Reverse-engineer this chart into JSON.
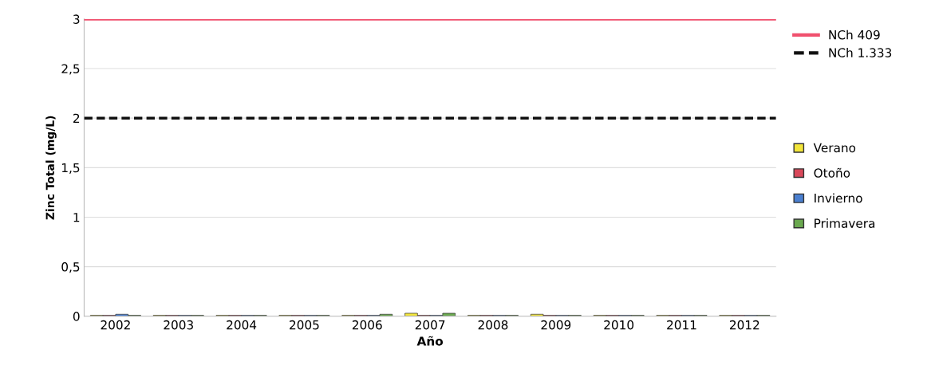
{
  "chart_data": {
    "type": "bar",
    "xlabel": "Año",
    "ylabel": "Zinc Total (mg/L)",
    "categories": [
      "2002",
      "2003",
      "2004",
      "2005",
      "2006",
      "2007",
      "2008",
      "2009",
      "2010",
      "2011",
      "2012"
    ],
    "series": [
      {
        "name": "Verano",
        "color": "#f2e53a",
        "values": [
          0.01,
          0.01,
          0.01,
          0.01,
          0.01,
          0.03,
          0.01,
          0.02,
          0.01,
          0.01,
          0.01
        ]
      },
      {
        "name": "Otoño",
        "color": "#d9485a",
        "values": [
          0.01,
          0.01,
          0.01,
          0.01,
          0.01,
          0.01,
          0.01,
          0.01,
          0.01,
          0.01,
          0.01
        ]
      },
      {
        "name": "Invierno",
        "color": "#4a7fd0",
        "values": [
          0.02,
          0.01,
          0.01,
          0.01,
          0.01,
          0.01,
          0.01,
          0.01,
          0.01,
          0.01,
          0.01
        ]
      },
      {
        "name": "Primavera",
        "color": "#6aa84f",
        "values": [
          0.01,
          0.01,
          0.01,
          0.01,
          0.02,
          0.03,
          0.01,
          0.01,
          0.01,
          0.01,
          0.01
        ]
      }
    ],
    "ref_lines": [
      {
        "axis": "y",
        "value": 3,
        "label": "NCh 409",
        "color": "#f0506e",
        "line_style": "solid"
      },
      {
        "axis": "y",
        "value": 2,
        "label": "NCh 1.333",
        "color": "#111111",
        "line_style": "dashed"
      }
    ],
    "ylim": [
      0,
      3
    ],
    "yticks": [
      {
        "value": 0,
        "label": "0"
      },
      {
        "value": 0.5,
        "label": "0,5"
      },
      {
        "value": 1,
        "label": "1"
      },
      {
        "value": 1.5,
        "label": "1,5"
      },
      {
        "value": 2,
        "label": "2"
      },
      {
        "value": 2.5,
        "label": "2,5"
      },
      {
        "value": 3,
        "label": "3"
      }
    ],
    "grid": "y",
    "legend": "right"
  }
}
